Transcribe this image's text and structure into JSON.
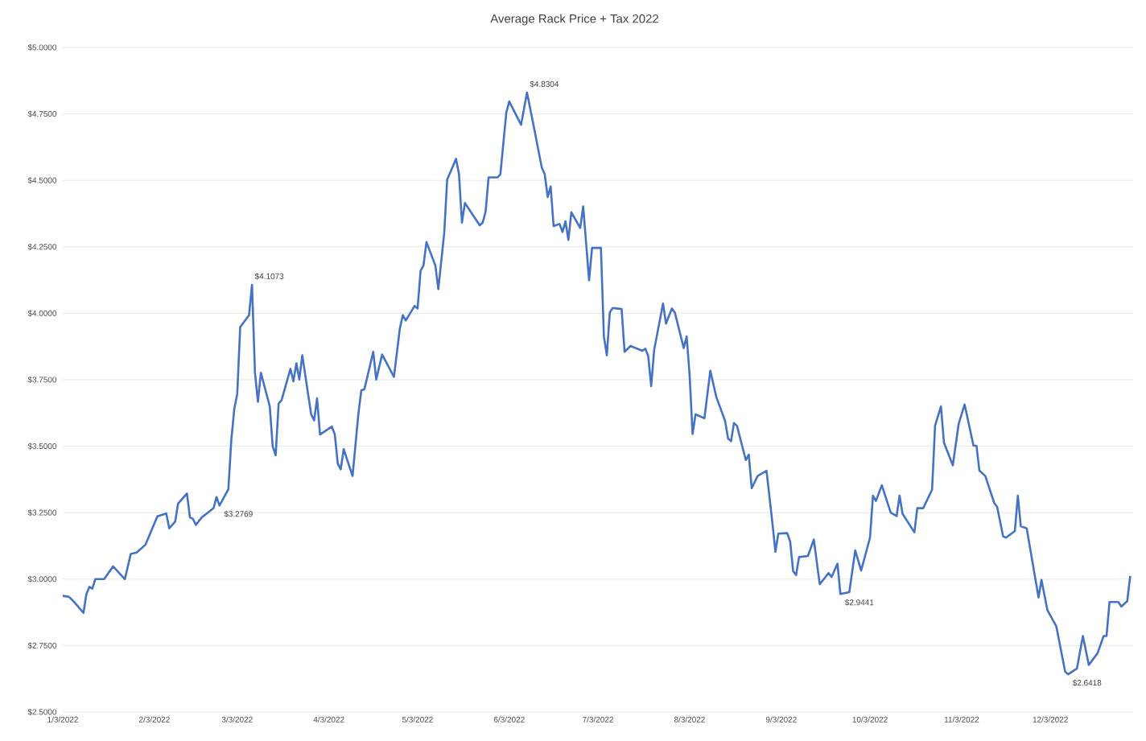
{
  "chart_data": {
    "type": "line",
    "title": "Average Rack Price + Tax 2022",
    "x": [
      "2022-01-03",
      "2022-01-05",
      "2022-01-06",
      "2022-01-08",
      "2022-01-10",
      "2022-01-11",
      "2022-01-12",
      "2022-01-13",
      "2022-01-14",
      "2022-01-17",
      "2022-01-20",
      "2022-01-24",
      "2022-01-26",
      "2022-01-28",
      "2022-01-31",
      "2022-02-04",
      "2022-02-07",
      "2022-02-08",
      "2022-02-10",
      "2022-02-11",
      "2022-02-14",
      "2022-02-15",
      "2022-02-16",
      "2022-02-17",
      "2022-02-19",
      "2022-02-23",
      "2022-02-24",
      "2022-02-25",
      "2022-02-28",
      "2022-03-01",
      "2022-03-02",
      "2022-03-03",
      "2022-03-04",
      "2022-03-07",
      "2022-03-08",
      "2022-03-09",
      "2022-03-10",
      "2022-03-11",
      "2022-03-14",
      "2022-03-15",
      "2022-03-16",
      "2022-03-17",
      "2022-03-18",
      "2022-03-21",
      "2022-03-22",
      "2022-03-23",
      "2022-03-24",
      "2022-03-25",
      "2022-03-28",
      "2022-03-29",
      "2022-03-30",
      "2022-03-31",
      "2022-04-04",
      "2022-04-05",
      "2022-04-06",
      "2022-04-07",
      "2022-04-08",
      "2022-04-11",
      "2022-04-13",
      "2022-04-14",
      "2022-04-15",
      "2022-04-18",
      "2022-04-19",
      "2022-04-21",
      "2022-04-25",
      "2022-04-27",
      "2022-04-28",
      "2022-04-29",
      "2022-05-02",
      "2022-05-03",
      "2022-05-04",
      "2022-05-05",
      "2022-05-06",
      "2022-05-09",
      "2022-05-10",
      "2022-05-12",
      "2022-05-13",
      "2022-05-16",
      "2022-05-17",
      "2022-05-18",
      "2022-05-19",
      "2022-05-24",
      "2022-05-25",
      "2022-05-26",
      "2022-05-27",
      "2022-05-30",
      "2022-05-31",
      "2022-06-02",
      "2022-06-03",
      "2022-06-07",
      "2022-06-09",
      "2022-06-11",
      "2022-06-14",
      "2022-06-15",
      "2022-06-16",
      "2022-06-17",
      "2022-06-18",
      "2022-06-20",
      "2022-06-21",
      "2022-06-22",
      "2022-06-23",
      "2022-06-24",
      "2022-06-27",
      "2022-06-28",
      "2022-06-30",
      "2022-07-01",
      "2022-07-04",
      "2022-07-05",
      "2022-07-06",
      "2022-07-07",
      "2022-07-08",
      "2022-07-11",
      "2022-07-12",
      "2022-07-14",
      "2022-07-18",
      "2022-07-19",
      "2022-07-20",
      "2022-07-21",
      "2022-07-22",
      "2022-07-25",
      "2022-07-26",
      "2022-07-28",
      "2022-07-29",
      "2022-08-01",
      "2022-08-02",
      "2022-08-03",
      "2022-08-04",
      "2022-08-05",
      "2022-08-08",
      "2022-08-10",
      "2022-08-12",
      "2022-08-15",
      "2022-08-16",
      "2022-08-17",
      "2022-08-18",
      "2022-08-19",
      "2022-08-22",
      "2022-08-23",
      "2022-08-24",
      "2022-08-26",
      "2022-08-29",
      "2022-08-31",
      "2022-09-01",
      "2022-09-02",
      "2022-09-05",
      "2022-09-06",
      "2022-09-07",
      "2022-09-08",
      "2022-09-09",
      "2022-09-12",
      "2022-09-14",
      "2022-09-16",
      "2022-09-19",
      "2022-09-20",
      "2022-09-22",
      "2022-09-23",
      "2022-09-26",
      "2022-09-28",
      "2022-09-30",
      "2022-10-03",
      "2022-10-04",
      "2022-10-05",
      "2022-10-07",
      "2022-10-10",
      "2022-10-12",
      "2022-10-13",
      "2022-10-14",
      "2022-10-18",
      "2022-10-19",
      "2022-10-21",
      "2022-10-24",
      "2022-10-25",
      "2022-10-27",
      "2022-10-28",
      "2022-10-31",
      "2022-11-02",
      "2022-11-04",
      "2022-11-07",
      "2022-11-08",
      "2022-11-09",
      "2022-11-11",
      "2022-11-14",
      "2022-11-15",
      "2022-11-17",
      "2022-11-18",
      "2022-11-21",
      "2022-11-22",
      "2022-11-23",
      "2022-11-25",
      "2022-11-29",
      "2022-11-30",
      "2022-12-02",
      "2022-12-05",
      "2022-12-08",
      "2022-12-09",
      "2022-12-12",
      "2022-12-14",
      "2022-12-16",
      "2022-12-19",
      "2022-12-21",
      "2022-12-22",
      "2022-12-23",
      "2022-12-26",
      "2022-12-27",
      "2022-12-29",
      "2022-12-30"
    ],
    "series": [
      {
        "color": "#4472c4",
        "values": [
          2.937,
          2.934,
          2.924,
          2.899,
          2.873,
          2.944,
          2.971,
          2.964,
          3.0,
          3.0,
          3.048,
          3.0,
          3.095,
          3.1,
          3.13,
          3.236,
          3.247,
          3.191,
          3.216,
          3.284,
          3.322,
          3.232,
          3.227,
          3.204,
          3.232,
          3.267,
          3.309,
          3.2769,
          3.338,
          3.524,
          3.64,
          3.696,
          3.948,
          3.993,
          4.1073,
          3.776,
          3.667,
          3.776,
          3.65,
          3.499,
          3.466,
          3.66,
          3.673,
          3.791,
          3.744,
          3.812,
          3.751,
          3.842,
          3.62,
          3.597,
          3.68,
          3.544,
          3.574,
          3.544,
          3.435,
          3.413,
          3.489,
          3.388,
          3.625,
          3.711,
          3.714,
          3.855,
          3.751,
          3.845,
          3.761,
          3.943,
          3.993,
          3.973,
          4.028,
          4.018,
          4.16,
          4.18,
          4.268,
          4.18,
          4.091,
          4.301,
          4.503,
          4.581,
          4.523,
          4.341,
          4.415,
          4.331,
          4.341,
          4.382,
          4.511,
          4.511,
          4.523,
          4.755,
          4.797,
          4.709,
          4.8304,
          4.719,
          4.548,
          4.523,
          4.437,
          4.477,
          4.328,
          4.336,
          4.306,
          4.346,
          4.276,
          4.38,
          4.321,
          4.402,
          4.124,
          4.246,
          4.246,
          3.913,
          3.842,
          4.003,
          4.02,
          4.016,
          3.855,
          3.877,
          3.859,
          3.867,
          3.839,
          3.726,
          3.862,
          4.037,
          3.961,
          4.018,
          4.003,
          3.869,
          3.913,
          3.766,
          3.546,
          3.62,
          3.605,
          3.784,
          3.686,
          3.595,
          3.529,
          3.519,
          3.587,
          3.577,
          3.448,
          3.468,
          3.342,
          3.388,
          3.408,
          3.211,
          3.103,
          3.171,
          3.173,
          3.141,
          3.03,
          3.015,
          3.083,
          3.087,
          3.149,
          2.981,
          3.023,
          3.008,
          3.058,
          2.9441,
          2.951,
          3.108,
          3.032,
          3.156,
          3.314,
          3.294,
          3.353,
          3.25,
          3.237,
          3.314,
          3.246,
          3.176,
          3.267,
          3.267,
          3.337,
          3.577,
          3.65,
          3.514,
          3.428,
          3.585,
          3.657,
          3.502,
          3.502,
          3.408,
          3.388,
          3.287,
          3.272,
          3.161,
          3.156,
          3.181,
          3.314,
          3.199,
          3.191,
          2.931,
          2.997,
          2.883,
          2.823,
          2.652,
          2.6418,
          2.664,
          2.786,
          2.677,
          2.722,
          2.786,
          2.786,
          2.914,
          2.914,
          2.897,
          2.917,
          3.012
        ]
      }
    ],
    "xlim": [
      "2022-01-03",
      "2022-12-31"
    ],
    "xticks": [
      {
        "value": "2022-01-03",
        "label": "1/3/2022"
      },
      {
        "value": "2022-02-03",
        "label": "2/3/2022"
      },
      {
        "value": "2022-03-03",
        "label": "3/3/2022"
      },
      {
        "value": "2022-04-03",
        "label": "4/3/2022"
      },
      {
        "value": "2022-05-03",
        "label": "5/3/2022"
      },
      {
        "value": "2022-06-03",
        "label": "6/3/2022"
      },
      {
        "value": "2022-07-03",
        "label": "7/3/2022"
      },
      {
        "value": "2022-08-03",
        "label": "8/3/2022"
      },
      {
        "value": "2022-09-03",
        "label": "9/3/2022"
      },
      {
        "value": "2022-10-03",
        "label": "10/3/2022"
      },
      {
        "value": "2022-11-03",
        "label": "11/3/2022"
      },
      {
        "value": "2022-12-03",
        "label": "12/3/2022"
      }
    ],
    "ylim": [
      2.5,
      5.0
    ],
    "yticks": [
      {
        "value": 2.5,
        "label": "$2.5000"
      },
      {
        "value": 2.75,
        "label": "$2.7500"
      },
      {
        "value": 3.0,
        "label": "$3.0000"
      },
      {
        "value": 3.25,
        "label": "$3.2500"
      },
      {
        "value": 3.5,
        "label": "$3.5000"
      },
      {
        "value": 3.75,
        "label": "$3.7500"
      },
      {
        "value": 4.0,
        "label": "$4.0000"
      },
      {
        "value": 4.25,
        "label": "$4.2500"
      },
      {
        "value": 4.5,
        "label": "$4.5000"
      },
      {
        "value": 4.75,
        "label": "$4.7500"
      },
      {
        "value": 5.0,
        "label": "$5.0000"
      }
    ],
    "grid": "y",
    "annotations": [
      {
        "text": "$3.2769",
        "x": "2022-02-25",
        "y": 3.2769
      },
      {
        "text": "$4.1073",
        "x": "2022-03-08",
        "y": 4.1073
      },
      {
        "text": "$4.8304",
        "x": "2022-06-09",
        "y": 4.8304
      },
      {
        "text": "$2.9441",
        "x": "2022-09-23",
        "y": 2.9441
      },
      {
        "text": "$2.6418",
        "x": "2022-12-09",
        "y": 2.6418
      }
    ]
  }
}
